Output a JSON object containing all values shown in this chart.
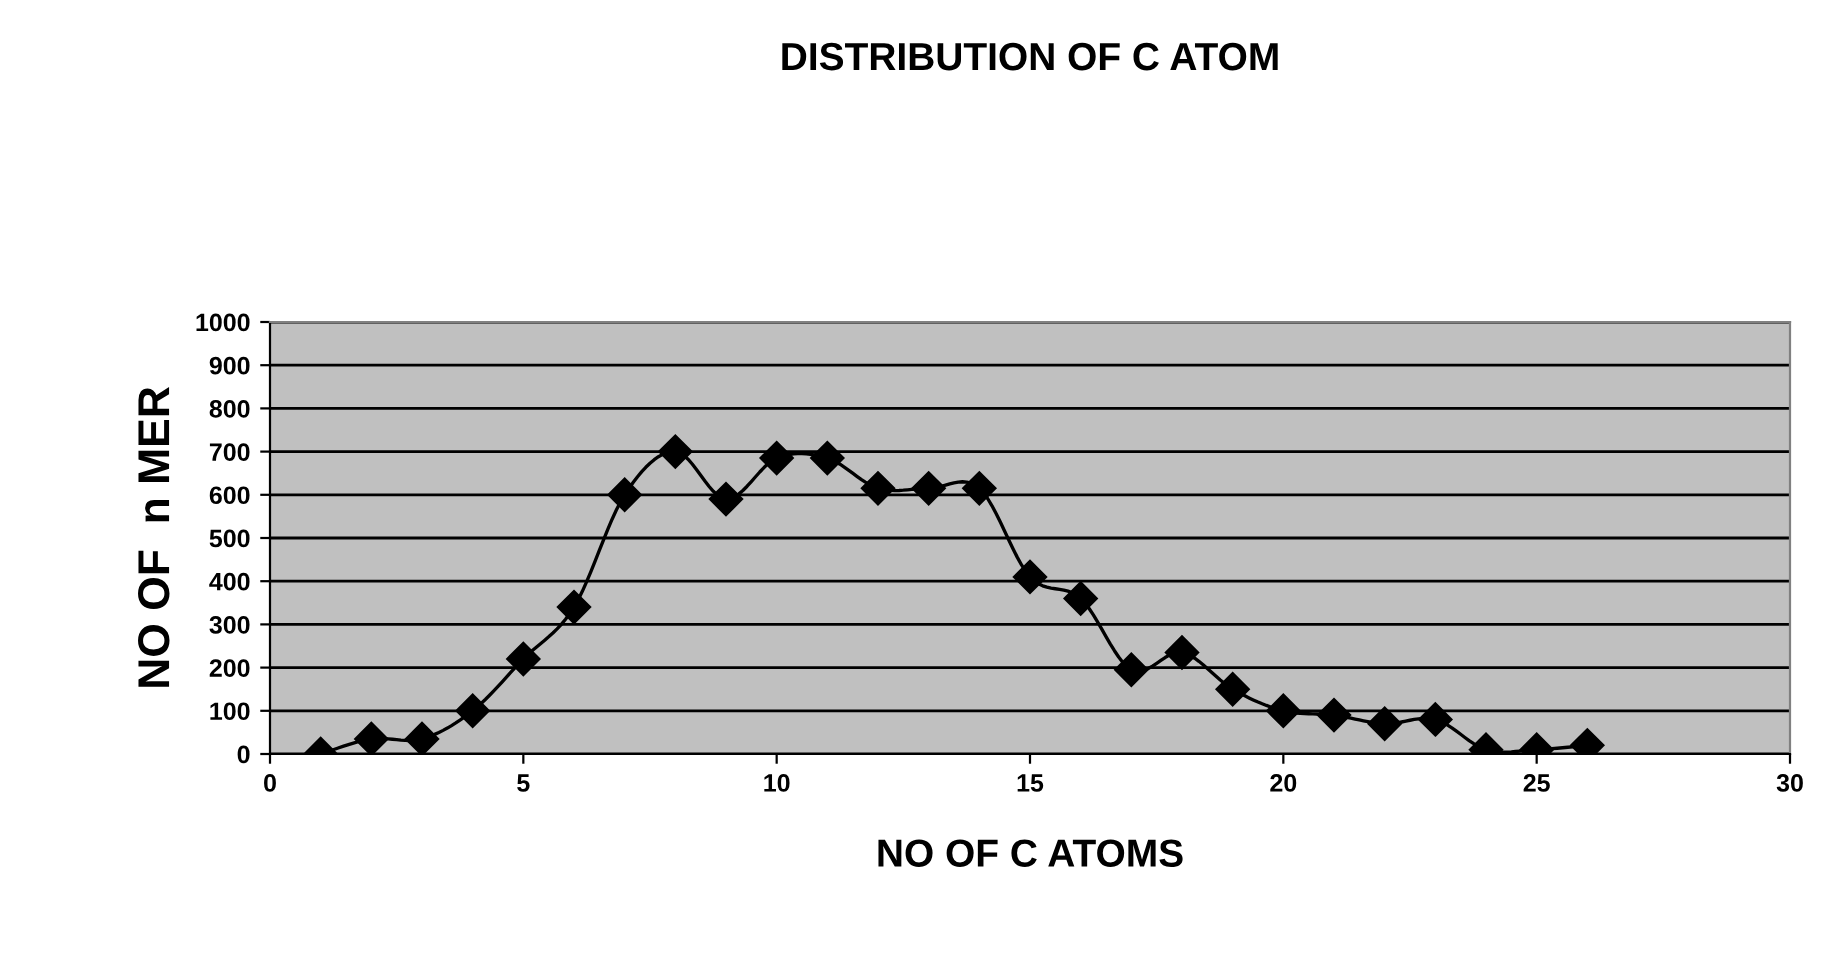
{
  "chart_data": {
    "type": "line",
    "title": "DISTRIBUTION OF C ATOM",
    "xlabel": "NO OF C ATOMS",
    "ylabel": "NO OF  n MER",
    "x": [
      1,
      2,
      3,
      4,
      5,
      6,
      7,
      8,
      9,
      10,
      11,
      12,
      13,
      14,
      15,
      16,
      17,
      18,
      19,
      20,
      21,
      22,
      23,
      24,
      25,
      26
    ],
    "series": [
      {
        "color": "#000000",
        "values": [
          0,
          35,
          35,
          100,
          220,
          340,
          600,
          700,
          590,
          685,
          685,
          615,
          615,
          615,
          410,
          360,
          195,
          235,
          150,
          100,
          90,
          70,
          80,
          10,
          10,
          20
        ]
      }
    ],
    "xlim": [
      0,
      30
    ],
    "xticks": [
      0,
      5,
      10,
      15,
      20,
      25,
      30
    ],
    "ylim": [
      0,
      1000
    ],
    "yticks": [
      0,
      100,
      200,
      300,
      400,
      500,
      600,
      700,
      800,
      900,
      1000
    ],
    "grid": "y",
    "marker": "diamond",
    "line_style": "solid"
  }
}
